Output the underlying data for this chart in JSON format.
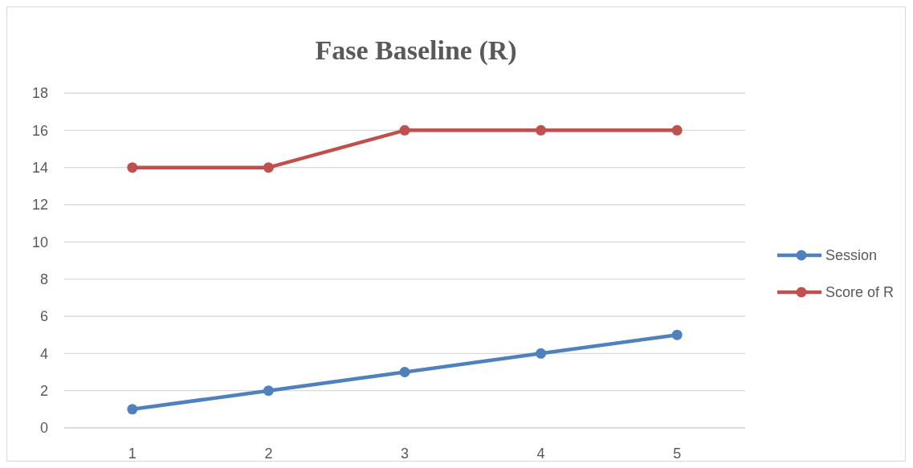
{
  "chart_data": {
    "type": "line",
    "title": "Fase Baseline (R)",
    "categories": [
      "1",
      "2",
      "3",
      "4",
      "5"
    ],
    "series": [
      {
        "name": "Session",
        "color": "#4f81bd",
        "values": [
          1,
          2,
          3,
          4,
          5
        ]
      },
      {
        "name": "Score of R",
        "color": "#c0504d",
        "values": [
          14,
          14,
          16,
          16,
          16
        ]
      }
    ],
    "ylim": [
      0,
      18
    ],
    "yticks": [
      0,
      2,
      4,
      6,
      8,
      10,
      12,
      14,
      16,
      18
    ],
    "grid": "y",
    "legend": "right",
    "marker": "circle",
    "line_style": "solid"
  }
}
